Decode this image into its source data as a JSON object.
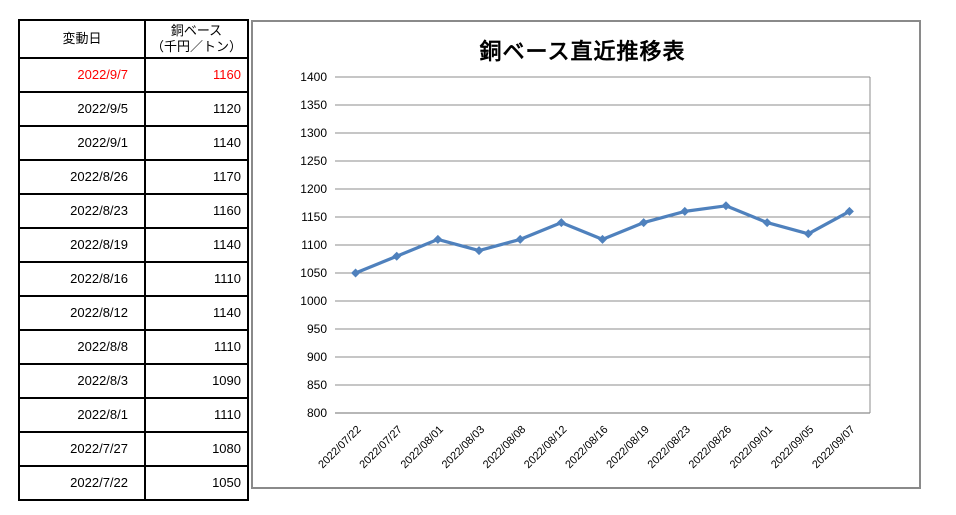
{
  "table": {
    "header": {
      "date_label": "変動日",
      "price_label_line1": "銅ベース",
      "price_label_line2": "（千円／トン）"
    },
    "highlight_color": "#FF0000",
    "rows": [
      {
        "date": "2022/9/7",
        "value": "1160",
        "highlight": true
      },
      {
        "date": "2022/9/5",
        "value": "1120",
        "highlight": false
      },
      {
        "date": "2022/9/1",
        "value": "1140",
        "highlight": false
      },
      {
        "date": "2022/8/26",
        "value": "1170",
        "highlight": false
      },
      {
        "date": "2022/8/23",
        "value": "1160",
        "highlight": false
      },
      {
        "date": "2022/8/19",
        "value": "1140",
        "highlight": false
      },
      {
        "date": "2022/8/16",
        "value": "1110",
        "highlight": false
      },
      {
        "date": "2022/8/12",
        "value": "1140",
        "highlight": false
      },
      {
        "date": "2022/8/8",
        "value": "1110",
        "highlight": false
      },
      {
        "date": "2022/8/3",
        "value": "1090",
        "highlight": false
      },
      {
        "date": "2022/8/1",
        "value": "1110",
        "highlight": false
      },
      {
        "date": "2022/7/27",
        "value": "1080",
        "highlight": false
      },
      {
        "date": "2022/7/22",
        "value": "1050",
        "highlight": false
      }
    ]
  },
  "chart_data": {
    "type": "line",
    "title": "銅ベース直近推移表",
    "categories": [
      "2022/07/22",
      "2022/07/27",
      "2022/08/01",
      "2022/08/03",
      "2022/08/08",
      "2022/08/12",
      "2022/08/16",
      "2022/08/19",
      "2022/08/23",
      "2022/08/26",
      "2022/09/01",
      "2022/09/05",
      "2022/09/07"
    ],
    "values": [
      1050,
      1080,
      1110,
      1090,
      1110,
      1140,
      1110,
      1140,
      1160,
      1170,
      1140,
      1120,
      1160
    ],
    "xlabel": "",
    "ylabel": "",
    "ylim": [
      800,
      1400
    ],
    "ytick_step": 50,
    "gridlines": true,
    "legend": "none",
    "line_color": "#4F81BD",
    "marker": "diamond",
    "grid_color": "#8C8C8C",
    "axis_text_color": "#000000"
  }
}
